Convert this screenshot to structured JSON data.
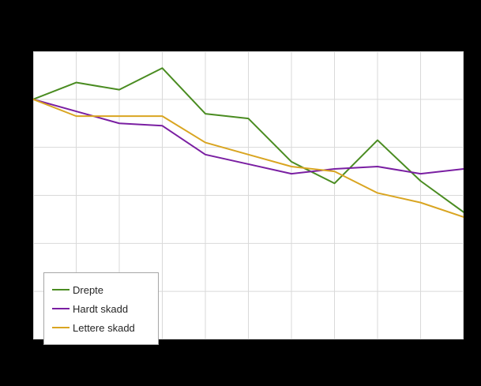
{
  "chart_data": {
    "type": "line",
    "title": "",
    "xlabel": "",
    "ylabel": "",
    "x": [
      0,
      1,
      2,
      3,
      4,
      5,
      6,
      7,
      8,
      9,
      10
    ],
    "series": [
      {
        "name": "Drepte",
        "color": "#4a8c21",
        "values": [
          100,
          107,
          104,
          113,
          94,
          92,
          74,
          65,
          83,
          66,
          53
        ]
      },
      {
        "name": "Hardt skadd",
        "color": "#7a1fa2",
        "values": [
          100,
          95,
          90,
          89,
          77,
          73,
          69,
          71,
          72,
          69,
          71
        ]
      },
      {
        "name": "Lettere skadd",
        "color": "#d9a521",
        "values": [
          100,
          93,
          93,
          93,
          82,
          77,
          72,
          70,
          61,
          57,
          51
        ]
      }
    ],
    "ylim": [
      0,
      120
    ],
    "y_step": 20,
    "grid": true,
    "legend_position": "bottom-left"
  },
  "colors": {
    "page_background": "#000000",
    "plot_background": "#ffffff",
    "gridline": "#d9d9d9",
    "legend_border": "#a6a6a6",
    "legend_text": "#262626"
  }
}
